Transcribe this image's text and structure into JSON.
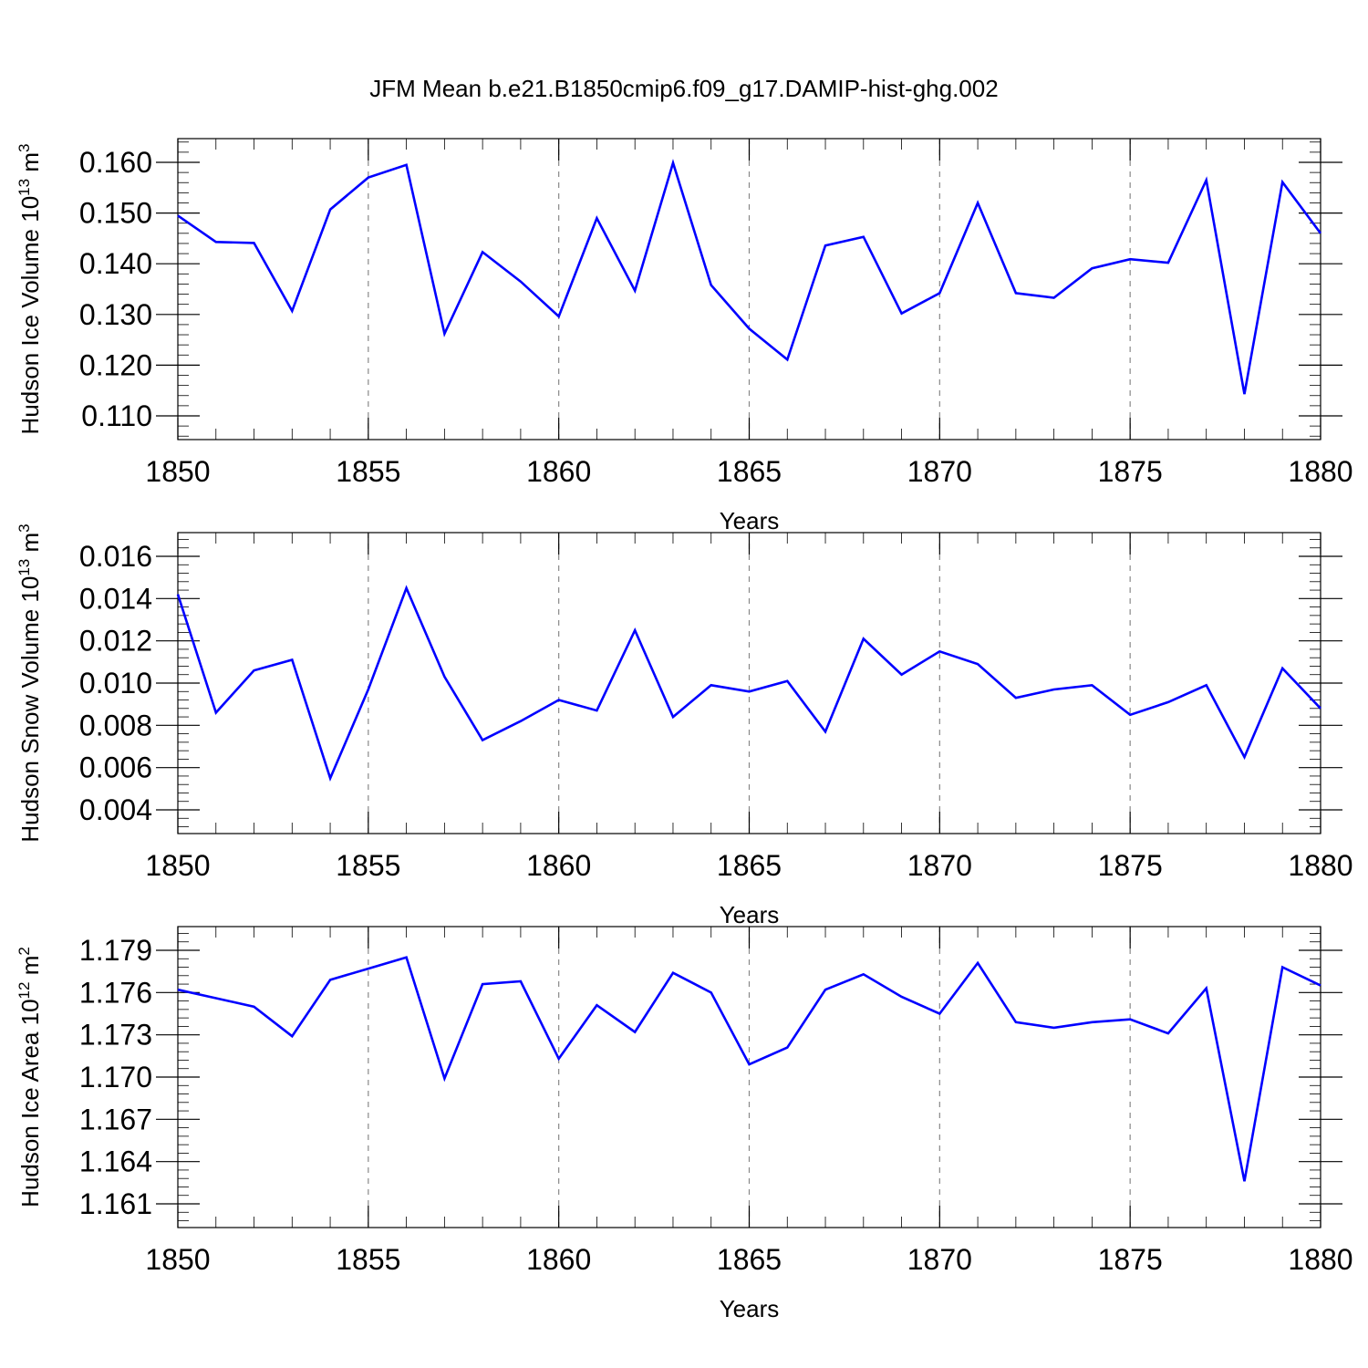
{
  "title": "JFM Mean b.e21.B1850cmip6.f09_g17.DAMIP-hist-ghg.002",
  "line_color": "#0000ff",
  "chart_data": [
    {
      "type": "line",
      "ylabel": "Hudson Ice Volume 10",
      "ylabel_sup": "13",
      "ylabel_unit": "m",
      "ylabel_unit_sup": "3",
      "xlabel": "Years",
      "xlim": [
        1850,
        1880
      ],
      "ylim": [
        0.11,
        0.16
      ],
      "grid": "vertical dashed at x major ticks",
      "x_ticks": [
        "1850",
        "1855",
        "1860",
        "1865",
        "1870",
        "1875",
        "1880"
      ],
      "y_ticks": [
        "0.110",
        "0.120",
        "0.130",
        "0.140",
        "0.150",
        "0.160"
      ],
      "x": [
        1850,
        1851,
        1852,
        1853,
        1854,
        1855,
        1856,
        1857,
        1858,
        1859,
        1860,
        1861,
        1862,
        1863,
        1864,
        1865,
        1866,
        1867,
        1868,
        1869,
        1870,
        1871,
        1872,
        1873,
        1874,
        1875,
        1876,
        1877,
        1878,
        1879,
        1880
      ],
      "y": [
        0.1495,
        0.1443,
        0.1441,
        0.1307,
        0.1507,
        0.157,
        0.1595,
        0.1262,
        0.1423,
        0.1365,
        0.1296,
        0.149,
        0.1347,
        0.1599,
        0.1358,
        0.1272,
        0.1211,
        0.1436,
        0.1453,
        0.1302,
        0.1342,
        0.152,
        0.1342,
        0.1333,
        0.1391,
        0.1409,
        0.1402,
        0.1565,
        0.1143,
        0.1561,
        0.146
      ]
    },
    {
      "type": "line",
      "ylabel": "Hudson Snow Volume 10",
      "ylabel_sup": "13",
      "ylabel_unit": "m",
      "ylabel_unit_sup": "3",
      "xlabel": "Years",
      "xlim": [
        1850,
        1880
      ],
      "ylim": [
        0.004,
        0.016
      ],
      "grid": "vertical dashed at x major ticks",
      "x_ticks": [
        "1850",
        "1855",
        "1860",
        "1865",
        "1870",
        "1875",
        "1880"
      ],
      "y_ticks": [
        "0.004",
        "0.006",
        "0.008",
        "0.010",
        "0.012",
        "0.014",
        "0.016"
      ],
      "x": [
        1850,
        1851,
        1852,
        1853,
        1854,
        1855,
        1856,
        1857,
        1858,
        1859,
        1860,
        1861,
        1862,
        1863,
        1864,
        1865,
        1866,
        1867,
        1868,
        1869,
        1870,
        1871,
        1872,
        1873,
        1874,
        1875,
        1876,
        1877,
        1878,
        1879,
        1880
      ],
      "y": [
        0.0142,
        0.0086,
        0.0106,
        0.0111,
        0.0055,
        0.0097,
        0.0145,
        0.0103,
        0.0073,
        0.0082,
        0.0092,
        0.0087,
        0.0125,
        0.0084,
        0.0099,
        0.0096,
        0.0101,
        0.0077,
        0.0121,
        0.0104,
        0.0115,
        0.0109,
        0.0093,
        0.0097,
        0.0099,
        0.0085,
        0.0091,
        0.0099,
        0.0065,
        0.0107,
        0.0088
      ]
    },
    {
      "type": "line",
      "ylabel": "Hudson Ice Area 10",
      "ylabel_sup": "12",
      "ylabel_unit": "m",
      "ylabel_unit_sup": "2",
      "xlabel": "Years",
      "xlim": [
        1850,
        1880
      ],
      "ylim": [
        1.161,
        1.179
      ],
      "grid": "vertical dashed at x major ticks",
      "x_ticks": [
        "1850",
        "1855",
        "1860",
        "1865",
        "1870",
        "1875",
        "1880"
      ],
      "y_ticks": [
        "1.161",
        "1.164",
        "1.167",
        "1.170",
        "1.173",
        "1.176",
        "1.179"
      ],
      "x": [
        1850,
        1851,
        1852,
        1853,
        1854,
        1855,
        1856,
        1857,
        1858,
        1859,
        1860,
        1861,
        1862,
        1863,
        1864,
        1865,
        1866,
        1867,
        1868,
        1869,
        1870,
        1871,
        1872,
        1873,
        1874,
        1875,
        1876,
        1877,
        1878,
        1879,
        1880
      ],
      "y": [
        1.1762,
        1.1756,
        1.175,
        1.1729,
        1.1769,
        1.1777,
        1.1785,
        1.1699,
        1.1766,
        1.1768,
        1.1713,
        1.1751,
        1.1732,
        1.1774,
        1.176,
        1.1709,
        1.1721,
        1.1762,
        1.1773,
        1.1757,
        1.1745,
        1.1781,
        1.1739,
        1.1735,
        1.1739,
        1.1741,
        1.1731,
        1.1763,
        1.1626,
        1.1778,
        1.1765
      ]
    }
  ]
}
